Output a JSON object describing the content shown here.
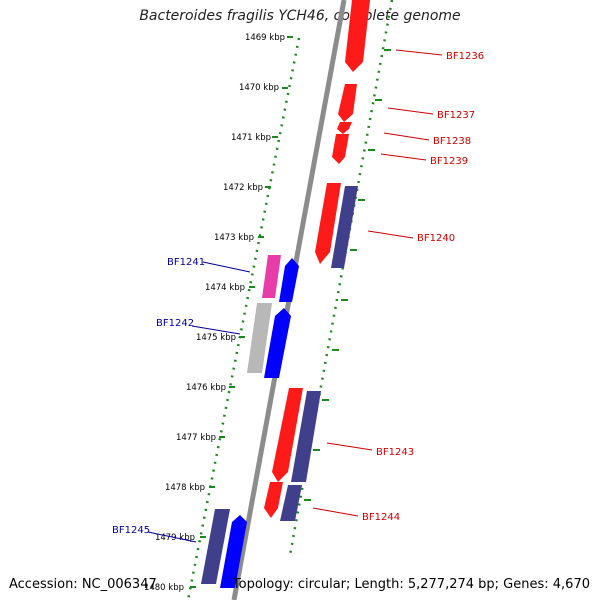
{
  "title": "Bacteroides fragilis YCH46, complete genome",
  "accession": "Accession: NC_006347",
  "summary": "Topology: circular; Length: 5,277,274 bp; Genes: 4,670",
  "colors": {
    "forward_gene": "#ff0000",
    "reverse_gene": "#0000ff",
    "cds_bar": "#3f3f8c",
    "pink_bar": "#e83ca8",
    "gray_bar": "#b8b8b8",
    "backbone": "#8c8c8c",
    "scale_ticks": "#1a8a1a",
    "red_label": "#cc0000",
    "blue_label": "#000099"
  },
  "scale": {
    "unit": "kbp",
    "labels": [
      "1469 kbp",
      "1470 kbp",
      "1471 kbp",
      "1472 kbp",
      "1473 kbp",
      "1474 kbp",
      "1475 kbp",
      "1476 kbp",
      "1477 kbp",
      "1478 kbp",
      "1479 kbp",
      "1480 kbp"
    ]
  },
  "genes": [
    {
      "id": "BF1236",
      "strand": "+"
    },
    {
      "id": "BF1237",
      "strand": "+"
    },
    {
      "id": "BF1238",
      "strand": "+"
    },
    {
      "id": "BF1239",
      "strand": "+"
    },
    {
      "id": "BF1240",
      "strand": "+"
    },
    {
      "id": "BF1241",
      "strand": "-"
    },
    {
      "id": "BF1242",
      "strand": "-"
    },
    {
      "id": "BF1243",
      "strand": "+"
    },
    {
      "id": "BF1244",
      "strand": "+"
    },
    {
      "id": "BF1245",
      "strand": "-"
    }
  ]
}
